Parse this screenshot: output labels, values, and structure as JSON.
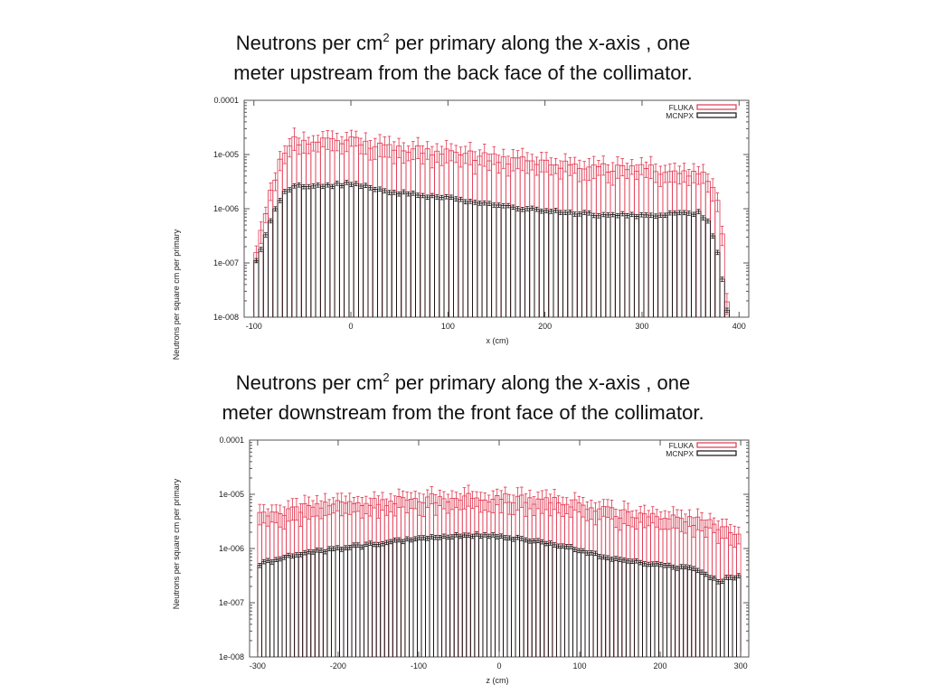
{
  "slide": {
    "title1": {
      "line1_pre": "Neutrons per cm",
      "line1_sup": "2",
      "line1_post": " per primary along the x-axis , one",
      "line2": "meter upstream from the back face of the collimator."
    },
    "title2": {
      "line1_pre": "Neutrons per cm",
      "line1_sup": "2",
      "line1_post": " per primary along the x-axis , one",
      "line2": "meter downstream from the front face of the collimator."
    }
  },
  "colors": {
    "fluka": "#e0364f",
    "mcnpx": "#111111",
    "frame": "#555555"
  },
  "chart_data": [
    {
      "type": "bar",
      "title": "",
      "xlabel": "x (cm)",
      "ylabel": "Neutrons per square cm per primary",
      "xlim": [
        -110,
        410
      ],
      "ylim": [
        1e-08,
        0.0001
      ],
      "yscale": "log",
      "grid": false,
      "legend_position": "top-right",
      "xticks": [
        "-100",
        "0",
        "100",
        "200",
        "300",
        "400"
      ],
      "yticks": [
        "0.0001",
        "1e-005",
        "1e-006",
        "1e-007",
        "1e-008"
      ],
      "series": [
        {
          "name": "FLUKA",
          "x_range": [
            -100,
            390
          ],
          "anchors": [
            [
              -100,
              1.2e-07
            ],
            [
              -90,
              6e-07
            ],
            [
              -80,
              3e-06
            ],
            [
              -70,
              1.2e-05
            ],
            [
              -60,
              1.9e-05
            ],
            [
              -40,
              1.7e-05
            ],
            [
              0,
              1.8e-05
            ],
            [
              30,
              1.5e-05
            ],
            [
              60,
              1.3e-05
            ],
            [
              100,
              1.15e-05
            ],
            [
              150,
              8.5e-06
            ],
            [
              200,
              7e-06
            ],
            [
              250,
              6e-06
            ],
            [
              300,
              5.5e-06
            ],
            [
              340,
              5e-06
            ],
            [
              365,
              4.2e-06
            ],
            [
              372,
              3e-06
            ],
            [
              378,
              1.2e-06
            ],
            [
              383,
              3e-07
            ],
            [
              388,
              1.2e-08
            ]
          ]
        },
        {
          "name": "MCNPX",
          "x_range": [
            -100,
            390
          ],
          "anchors": [
            [
              -100,
              8e-08
            ],
            [
              -90,
              2.5e-07
            ],
            [
              -80,
              8e-07
            ],
            [
              -70,
              2e-06
            ],
            [
              -60,
              2.6e-06
            ],
            [
              -20,
              2.7e-06
            ],
            [
              0,
              3e-06
            ],
            [
              40,
              2.1e-06
            ],
            [
              100,
              1.6e-06
            ],
            [
              150,
              1.15e-06
            ],
            [
              200,
              9.5e-07
            ],
            [
              250,
              8e-07
            ],
            [
              300,
              7.5e-07
            ],
            [
              360,
              8.5e-07
            ],
            [
              370,
              5e-07
            ],
            [
              378,
              1.5e-07
            ],
            [
              385,
              3e-08
            ],
            [
              388,
              1.2e-08
            ]
          ]
        }
      ]
    },
    {
      "type": "bar",
      "title": "",
      "xlabel": "z (cm)",
      "ylabel": "Neutrons per square cm per primary",
      "xlim": [
        -310,
        310
      ],
      "ylim": [
        1e-08,
        0.0001
      ],
      "yscale": "log",
      "grid": false,
      "legend_position": "top-right",
      "xticks": [
        "-300",
        "-200",
        "-100",
        "0",
        "100",
        "200",
        "300"
      ],
      "yticks": [
        "0.0001",
        "1e-005",
        "1e-006",
        "1e-007",
        "1e-008"
      ],
      "series": [
        {
          "name": "FLUKA",
          "x_range": [
            -300,
            300
          ],
          "anchors": [
            [
              -300,
              4e-06
            ],
            [
              -250,
              5.5e-06
            ],
            [
              -200,
              6.5e-06
            ],
            [
              -150,
              7.5e-06
            ],
            [
              -100,
              8.5e-06
            ],
            [
              -50,
              9e-06
            ],
            [
              0,
              9e-06
            ],
            [
              50,
              8e-06
            ],
            [
              100,
              6.5e-06
            ],
            [
              150,
              4.5e-06
            ],
            [
              200,
              4e-06
            ],
            [
              250,
              3.2e-06
            ],
            [
              300,
              2e-06
            ]
          ]
        },
        {
          "name": "MCNPX",
          "x_range": [
            -300,
            300
          ],
          "anchors": [
            [
              -300,
              5e-07
            ],
            [
              -250,
              8e-07
            ],
            [
              -200,
              1e-06
            ],
            [
              -150,
              1.25e-06
            ],
            [
              -100,
              1.5e-06
            ],
            [
              -50,
              1.75e-06
            ],
            [
              -20,
              1.8e-06
            ],
            [
              0,
              1.7e-06
            ],
            [
              50,
              1.35e-06
            ],
            [
              100,
              9.5e-07
            ],
            [
              150,
              6e-07
            ],
            [
              200,
              5.2e-07
            ],
            [
              250,
              4e-07
            ],
            [
              270,
              2.5e-07
            ],
            [
              300,
              3.3e-07
            ]
          ]
        }
      ]
    }
  ]
}
